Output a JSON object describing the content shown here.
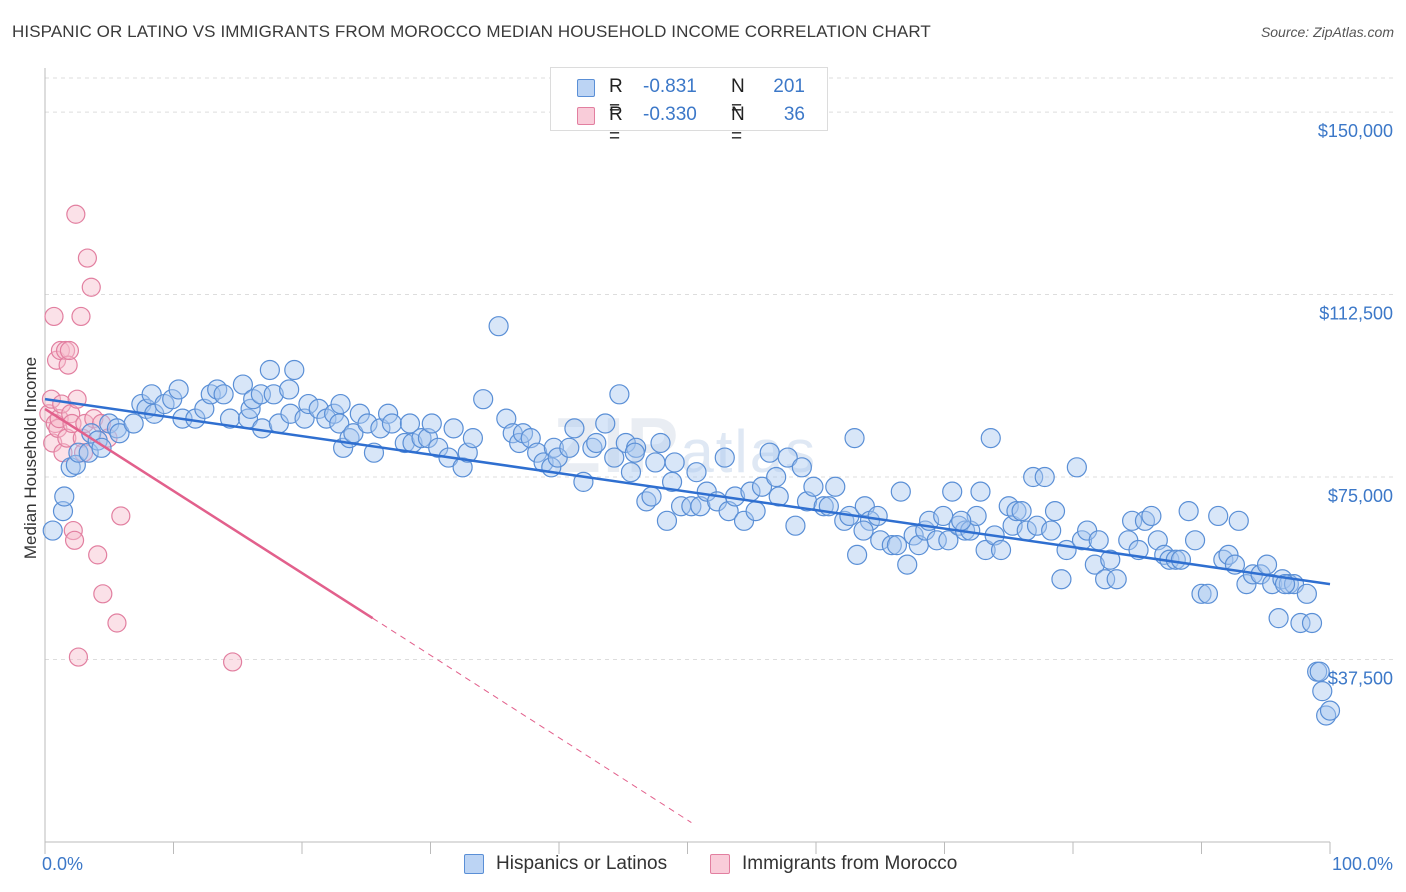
{
  "title": "HISPANIC OR LATINO VS IMMIGRANTS FROM MOROCCO MEDIAN HOUSEHOLD INCOME CORRELATION CHART",
  "source": "Source: ZipAtlas.com",
  "watermark": {
    "main": "ZIP",
    "sub": "atlas"
  },
  "legend": [
    {
      "r_label": "R =",
      "r_value": "-0.831",
      "n_label": "N =",
      "n_value": "201"
    },
    {
      "r_label": "R =",
      "r_value": "-0.330",
      "n_label": "N =",
      "n_value": "36"
    }
  ],
  "colors": {
    "blue_fill": "#a9c8f0",
    "blue_stroke": "#5a8fd6",
    "blue_line": "#2f6fd0",
    "pink_fill": "#f6bccd",
    "pink_stroke": "#e27fa0",
    "pink_line": "#e2608c",
    "tick_text": "#3c78c8",
    "grid": "#dddddd"
  },
  "chart_data": {
    "type": "scatter",
    "title": "HISPANIC OR LATINO VS IMMIGRANTS FROM MOROCCO MEDIAN HOUSEHOLD INCOME CORRELATION CHART",
    "xlabel": "",
    "ylabel": "Median Household Income",
    "xlim": [
      0,
      100
    ],
    "ylim": [
      0,
      157000
    ],
    "x_tick_labels": [
      "0.0%",
      "100.0%"
    ],
    "y_ticks": [
      37500,
      75000,
      112500,
      150000
    ],
    "y_tick_labels": [
      "$37,500",
      "$75,000",
      "$112,500",
      "$150,000"
    ],
    "grid": true,
    "series": [
      {
        "name": "Hispanics or Latinos",
        "trend": {
          "x0": 0,
          "y0": 91000,
          "x1": 100,
          "y1": 53000
        },
        "points": [
          [
            0.6,
            64000
          ],
          [
            1.4,
            68000
          ],
          [
            1.5,
            71000
          ],
          [
            2.0,
            77000
          ],
          [
            2.4,
            77500
          ],
          [
            2.6,
            80000
          ],
          [
            3.4,
            80000
          ],
          [
            3.6,
            84000
          ],
          [
            4.1,
            82500
          ],
          [
            4.4,
            81000
          ],
          [
            5.0,
            86000
          ],
          [
            5.6,
            85000
          ],
          [
            5.8,
            84000
          ],
          [
            6.9,
            86000
          ],
          [
            7.5,
            90000
          ],
          [
            7.9,
            89000
          ],
          [
            8.3,
            92000
          ],
          [
            8.5,
            88000
          ],
          [
            9.3,
            90000
          ],
          [
            9.9,
            91000
          ],
          [
            10.4,
            93000
          ],
          [
            10.7,
            87000
          ],
          [
            11.7,
            87000
          ],
          [
            12.4,
            89000
          ],
          [
            12.9,
            92000
          ],
          [
            13.4,
            93000
          ],
          [
            13.9,
            92000
          ],
          [
            14.4,
            87000
          ],
          [
            15.4,
            94000
          ],
          [
            15.8,
            87000
          ],
          [
            16.0,
            89000
          ],
          [
            16.2,
            91000
          ],
          [
            16.8,
            92000
          ],
          [
            16.9,
            85000
          ],
          [
            17.5,
            97000
          ],
          [
            17.8,
            92000
          ],
          [
            18.2,
            86000
          ],
          [
            19.0,
            93000
          ],
          [
            19.1,
            88000
          ],
          [
            19.4,
            97000
          ],
          [
            20.2,
            87000
          ],
          [
            20.5,
            90000
          ],
          [
            21.3,
            89000
          ],
          [
            21.9,
            87000
          ],
          [
            22.5,
            88000
          ],
          [
            22.9,
            86000
          ],
          [
            23.0,
            90000
          ],
          [
            23.2,
            81000
          ],
          [
            23.7,
            83000
          ],
          [
            24.0,
            84000
          ],
          [
            24.5,
            88000
          ],
          [
            25.1,
            86000
          ],
          [
            25.6,
            80000
          ],
          [
            26.1,
            85000
          ],
          [
            26.7,
            88000
          ],
          [
            27.0,
            86000
          ],
          [
            28.0,
            82000
          ],
          [
            28.4,
            86000
          ],
          [
            28.6,
            82000
          ],
          [
            29.3,
            83000
          ],
          [
            29.8,
            83000
          ],
          [
            30.1,
            86000
          ],
          [
            30.6,
            81000
          ],
          [
            31.4,
            79000
          ],
          [
            31.8,
            85000
          ],
          [
            32.5,
            77000
          ],
          [
            32.9,
            80000
          ],
          [
            33.3,
            83000
          ],
          [
            34.1,
            91000
          ],
          [
            35.3,
            106000
          ],
          [
            35.9,
            87000
          ],
          [
            36.4,
            84000
          ],
          [
            36.9,
            82000
          ],
          [
            37.2,
            84000
          ],
          [
            37.8,
            83000
          ],
          [
            38.3,
            80000
          ],
          [
            38.8,
            78000
          ],
          [
            39.4,
            77000
          ],
          [
            39.6,
            81000
          ],
          [
            39.9,
            79000
          ],
          [
            40.8,
            81000
          ],
          [
            41.2,
            85000
          ],
          [
            41.9,
            74000
          ],
          [
            42.6,
            81000
          ],
          [
            42.9,
            82000
          ],
          [
            43.6,
            86000
          ],
          [
            44.3,
            79000
          ],
          [
            44.7,
            92000
          ],
          [
            45.2,
            82000
          ],
          [
            45.6,
            76000
          ],
          [
            46.0,
            81000
          ],
          [
            46.8,
            70000
          ],
          [
            47.2,
            71000
          ],
          [
            47.5,
            78000
          ],
          [
            47.9,
            82000
          ],
          [
            48.4,
            66000
          ],
          [
            48.8,
            74000
          ],
          [
            49.0,
            78000
          ],
          [
            49.5,
            69000
          ],
          [
            50.3,
            69000
          ],
          [
            50.7,
            76000
          ],
          [
            51.0,
            69000
          ],
          [
            51.5,
            72000
          ],
          [
            52.3,
            70000
          ],
          [
            52.9,
            79000
          ],
          [
            53.2,
            68000
          ],
          [
            53.7,
            71000
          ],
          [
            54.4,
            66000
          ],
          [
            54.9,
            72000
          ],
          [
            55.3,
            68000
          ],
          [
            55.8,
            73000
          ],
          [
            56.4,
            80000
          ],
          [
            56.9,
            75000
          ],
          [
            57.1,
            71000
          ],
          [
            57.8,
            79000
          ],
          [
            58.4,
            65000
          ],
          [
            58.9,
            77000
          ],
          [
            59.3,
            70000
          ],
          [
            59.8,
            73000
          ],
          [
            60.6,
            69000
          ],
          [
            61.0,
            69000
          ],
          [
            61.5,
            73000
          ],
          [
            62.2,
            66000
          ],
          [
            62.6,
            67000
          ],
          [
            63.0,
            83000
          ],
          [
            63.2,
            59000
          ],
          [
            63.8,
            69000
          ],
          [
            64.2,
            66000
          ],
          [
            64.8,
            67000
          ],
          [
            65.0,
            62000
          ],
          [
            65.9,
            61000
          ],
          [
            66.3,
            61000
          ],
          [
            66.6,
            72000
          ],
          [
            67.1,
            57000
          ],
          [
            67.6,
            63000
          ],
          [
            68.0,
            61000
          ],
          [
            68.5,
            64000
          ],
          [
            68.8,
            66000
          ],
          [
            69.4,
            62000
          ],
          [
            69.9,
            67000
          ],
          [
            70.3,
            62000
          ],
          [
            70.6,
            72000
          ],
          [
            71.1,
            65000
          ],
          [
            71.6,
            64000
          ],
          [
            72.0,
            64000
          ],
          [
            72.5,
            67000
          ],
          [
            72.8,
            72000
          ],
          [
            73.2,
            60000
          ],
          [
            73.6,
            83000
          ],
          [
            73.9,
            63000
          ],
          [
            74.4,
            60000
          ],
          [
            75.0,
            69000
          ],
          [
            75.3,
            65000
          ],
          [
            75.6,
            68000
          ],
          [
            76.0,
            68000
          ],
          [
            76.4,
            64000
          ],
          [
            76.9,
            75000
          ],
          [
            77.2,
            65000
          ],
          [
            77.8,
            75000
          ],
          [
            78.3,
            64000
          ],
          [
            78.6,
            68000
          ],
          [
            79.1,
            54000
          ],
          [
            79.5,
            60000
          ],
          [
            80.3,
            77000
          ],
          [
            80.7,
            62000
          ],
          [
            81.1,
            64000
          ],
          [
            81.7,
            57000
          ],
          [
            82.0,
            62000
          ],
          [
            82.5,
            54000
          ],
          [
            82.9,
            58000
          ],
          [
            83.4,
            54000
          ],
          [
            84.3,
            62000
          ],
          [
            84.6,
            66000
          ],
          [
            85.1,
            60000
          ],
          [
            85.6,
            66000
          ],
          [
            86.1,
            67000
          ],
          [
            86.6,
            62000
          ],
          [
            87.1,
            59000
          ],
          [
            87.5,
            58000
          ],
          [
            88.0,
            58000
          ],
          [
            88.4,
            58000
          ],
          [
            89.0,
            68000
          ],
          [
            89.5,
            62000
          ],
          [
            90.0,
            51000
          ],
          [
            90.5,
            51000
          ],
          [
            91.3,
            67000
          ],
          [
            91.7,
            58000
          ],
          [
            92.1,
            59000
          ],
          [
            92.6,
            57000
          ],
          [
            92.9,
            66000
          ],
          [
            93.5,
            53000
          ],
          [
            94.0,
            55000
          ],
          [
            94.6,
            55000
          ],
          [
            95.1,
            57000
          ],
          [
            95.5,
            53000
          ],
          [
            96.0,
            46000
          ],
          [
            96.3,
            54000
          ],
          [
            96.8,
            53000
          ],
          [
            97.2,
            53000
          ],
          [
            97.7,
            45000
          ],
          [
            98.2,
            51000
          ],
          [
            98.6,
            45000
          ],
          [
            99.0,
            35000
          ],
          [
            99.4,
            31000
          ],
          [
            99.7,
            26000
          ],
          [
            100.0,
            27000
          ],
          [
            96.5,
            53000
          ],
          [
            63.7,
            64000
          ],
          [
            45.9,
            80000
          ],
          [
            71.3,
            66000
          ],
          [
            99.2,
            35000
          ]
        ]
      },
      {
        "name": "Immigrants from Morocco",
        "trend": {
          "x0": 0,
          "y0": 89000,
          "x1": 25.5,
          "y1": 46000
        },
        "trend_dashed": {
          "x0": 25.5,
          "y0": 46000,
          "x1": 50.3,
          "y1": 4000
        },
        "points": [
          [
            0.3,
            88000
          ],
          [
            0.5,
            91000
          ],
          [
            0.6,
            82000
          ],
          [
            0.7,
            108000
          ],
          [
            0.8,
            86000
          ],
          [
            0.9,
            99000
          ],
          [
            1.0,
            85000
          ],
          [
            1.1,
            87000
          ],
          [
            1.2,
            101000
          ],
          [
            1.3,
            90000
          ],
          [
            1.4,
            80000
          ],
          [
            1.6,
            101000
          ],
          [
            1.7,
            83000
          ],
          [
            1.8,
            98000
          ],
          [
            1.9,
            101000
          ],
          [
            2.0,
            88000
          ],
          [
            2.1,
            86000
          ],
          [
            2.2,
            64000
          ],
          [
            2.3,
            62000
          ],
          [
            2.4,
            129000
          ],
          [
            2.5,
            91000
          ],
          [
            2.6,
            38000
          ],
          [
            2.8,
            108000
          ],
          [
            2.9,
            83000
          ],
          [
            3.0,
            80000
          ],
          [
            3.1,
            86000
          ],
          [
            3.3,
            120000
          ],
          [
            3.6,
            114000
          ],
          [
            3.8,
            87000
          ],
          [
            4.1,
            59000
          ],
          [
            4.4,
            86000
          ],
          [
            4.5,
            51000
          ],
          [
            4.9,
            83000
          ],
          [
            5.6,
            45000
          ],
          [
            5.9,
            67000
          ],
          [
            14.6,
            37000
          ]
        ]
      }
    ]
  },
  "bottom_legend": [
    "Hispanics or Latinos",
    "Immigrants from Morocco"
  ]
}
